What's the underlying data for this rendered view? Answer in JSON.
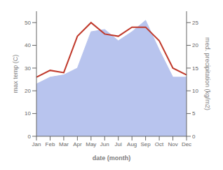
{
  "chart_data": {
    "type": "combo",
    "categories": [
      "Jan",
      "Feb",
      "Mar",
      "Apr",
      "May",
      "Jun",
      "Jul",
      "Aug",
      "Sep",
      "Oct",
      "Nov",
      "Dec"
    ],
    "series": [
      {
        "type": "area",
        "color": "#b8c4ee",
        "values": [
          23,
          26,
          27,
          30,
          46,
          47,
          42,
          46,
          51,
          38,
          26,
          26
        ]
      },
      {
        "type": "line",
        "color": "#c0392b",
        "axis": "y2",
        "values": [
          13,
          14.5,
          14,
          22,
          25,
          22.5,
          22,
          24,
          24,
          21,
          15,
          13.5
        ]
      }
    ],
    "xlabel": "date (month)",
    "ylabel": "max temp (C)",
    "y2label": "med. precipitation (kg/m2)",
    "ylim": [
      0,
      55
    ],
    "yticks": [
      0,
      10,
      20,
      30,
      40,
      50
    ],
    "y2lim": [
      0,
      27.5
    ],
    "y2ticks": [
      0,
      5,
      10,
      15,
      20,
      25
    ],
    "grid": false
  }
}
